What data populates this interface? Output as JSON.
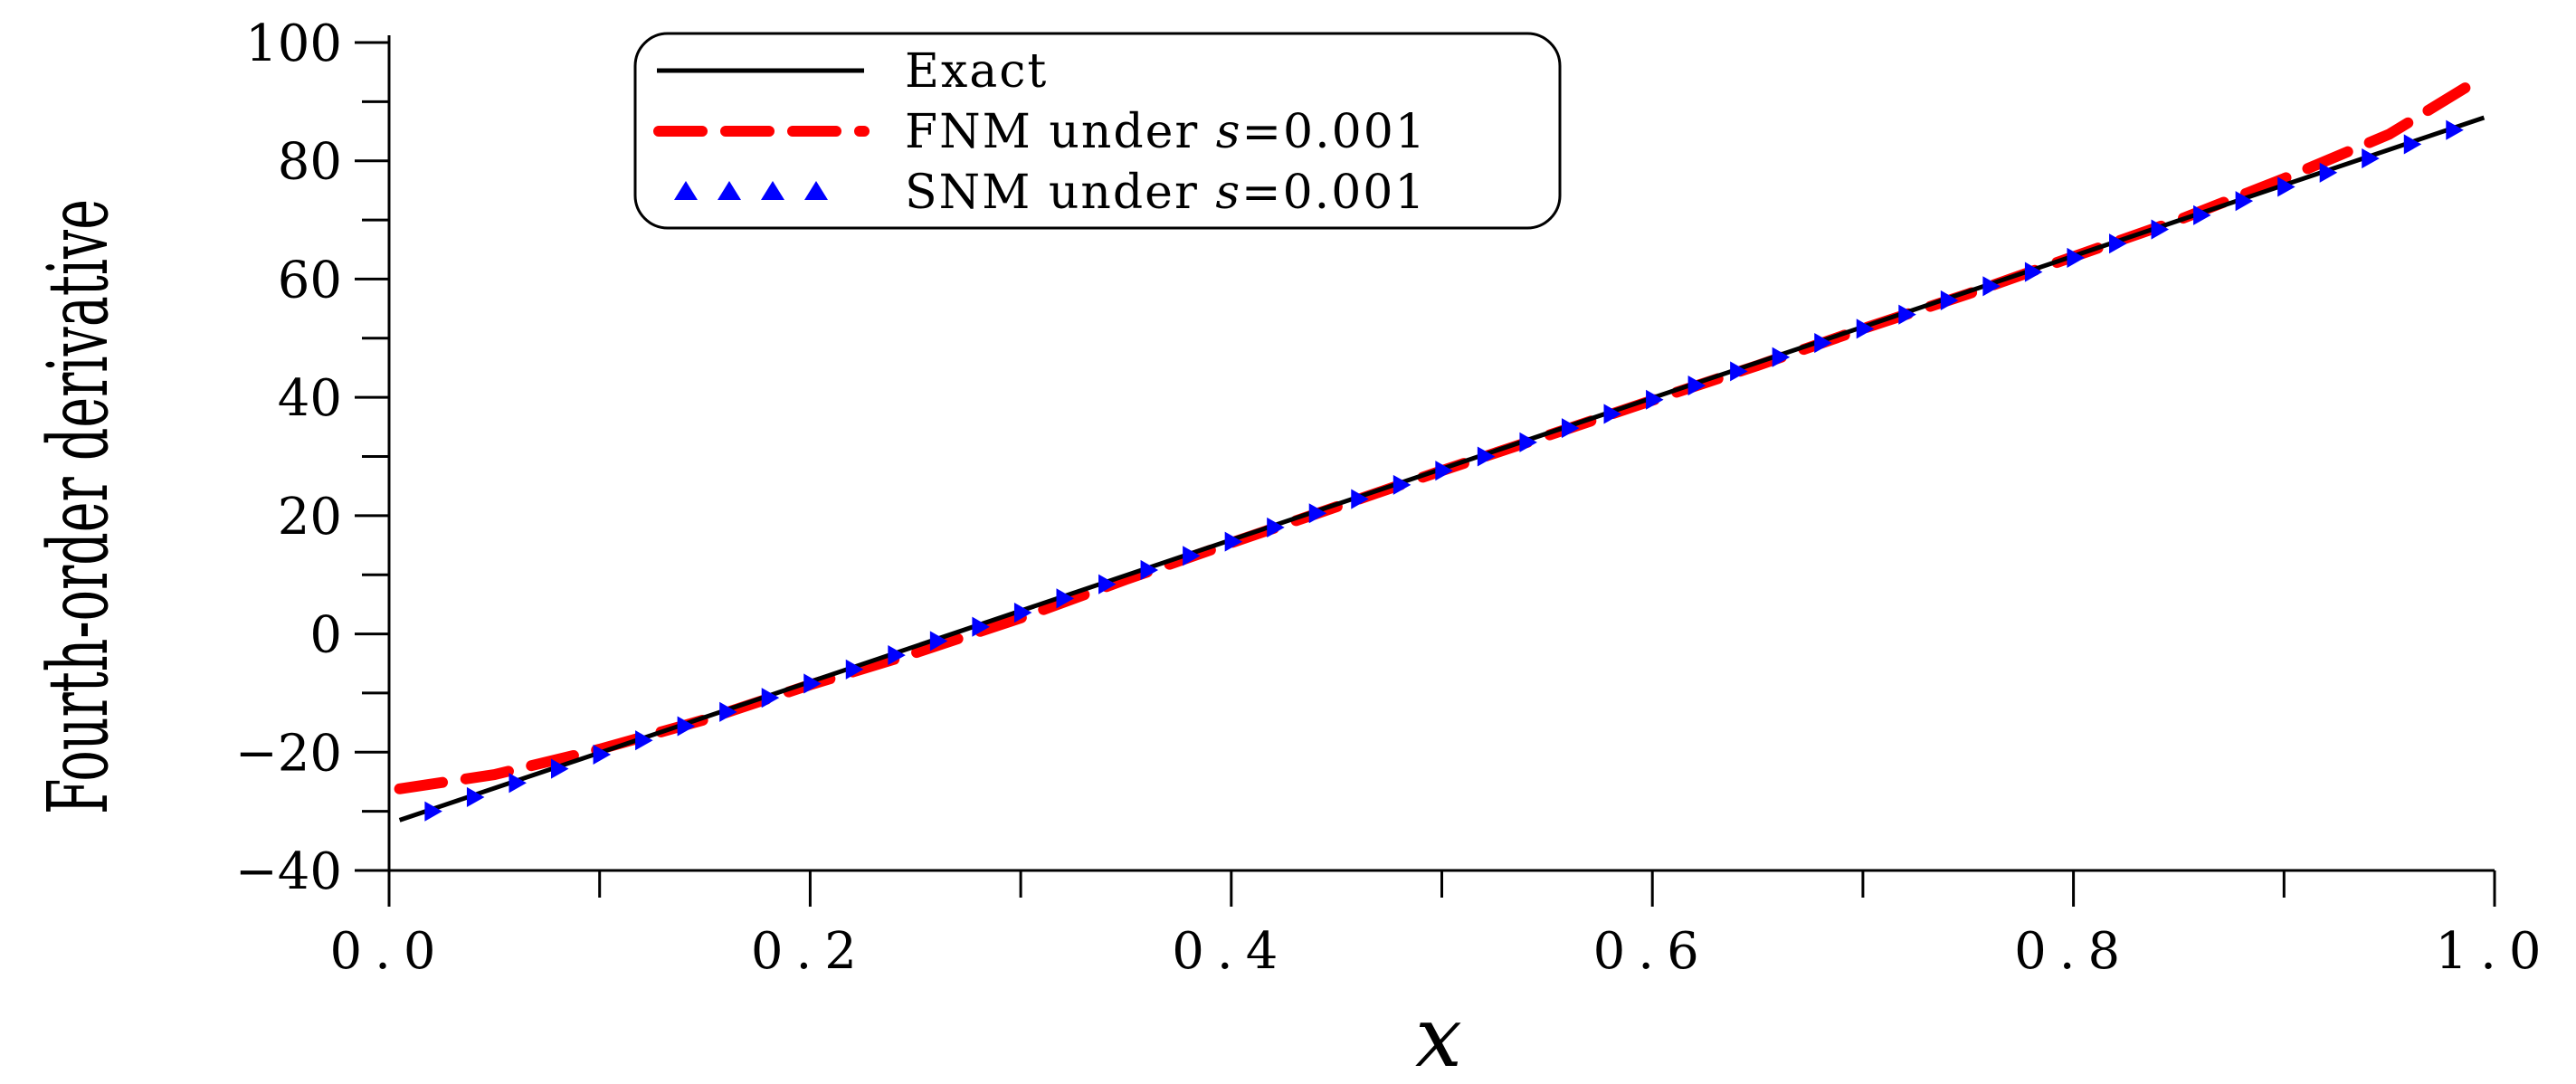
{
  "chart_data": {
    "type": "line",
    "title": "",
    "xlabel": "x",
    "ylabel": "Fourth-order derivative",
    "xlim": [
      0.0,
      1.0
    ],
    "ylim": [
      -40,
      100
    ],
    "x_ticks": [
      "0.0",
      "0.2",
      "0.4",
      "0.6",
      "0.8",
      "1.0"
    ],
    "y_ticks": [
      "−40",
      "−20",
      "0",
      "20",
      "40",
      "60",
      "80",
      "100"
    ],
    "grid": false,
    "legend_position": "top-center",
    "series": [
      {
        "name": "Exact",
        "style": "solid",
        "color": "#000000",
        "x": [
          0.005,
          0.995
        ],
        "y": [
          -31.5,
          87.3
        ]
      },
      {
        "name": "FNM under s=0.001",
        "style": "dashed",
        "color": "#ff0000",
        "x": [
          0.005,
          0.05,
          0.1,
          0.15,
          0.2,
          0.25,
          0.3,
          0.35,
          0.4,
          0.45,
          0.5,
          0.55,
          0.6,
          0.65,
          0.7,
          0.75,
          0.8,
          0.85,
          0.9,
          0.95,
          0.995
        ],
        "y": [
          -26.2,
          -23.8,
          -19.5,
          -14.5,
          -8.6,
          -3.2,
          2.7,
          9.2,
          15.4,
          21.5,
          27.6,
          33.5,
          39.5,
          45.4,
          51.6,
          57.5,
          63.8,
          70.0,
          77.0,
          84.5,
          94.3
        ]
      },
      {
        "name": "SNM under s=0.001",
        "style": "triangle-markers",
        "color": "#0000ff",
        "x": [
          0.02,
          0.04,
          0.06,
          0.08,
          0.1,
          0.12,
          0.14,
          0.16,
          0.18,
          0.2,
          0.22,
          0.24,
          0.26,
          0.28,
          0.3,
          0.32,
          0.34,
          0.36,
          0.38,
          0.4,
          0.42,
          0.44,
          0.46,
          0.48,
          0.5,
          0.52,
          0.54,
          0.56,
          0.58,
          0.6,
          0.62,
          0.64,
          0.66,
          0.68,
          0.7,
          0.72,
          0.74,
          0.76,
          0.78,
          0.8,
          0.82,
          0.84,
          0.86,
          0.88,
          0.9,
          0.92,
          0.94,
          0.96,
          0.98
        ],
        "y": [
          -30.0,
          -27.6,
          -25.2,
          -22.8,
          -20.4,
          -18.0,
          -15.6,
          -13.2,
          -10.8,
          -8.4,
          -6.0,
          -3.6,
          -1.2,
          1.2,
          3.6,
          6.0,
          8.4,
          10.8,
          13.2,
          15.6,
          18.0,
          20.4,
          22.8,
          25.2,
          27.6,
          30.0,
          32.4,
          34.8,
          37.2,
          39.6,
          42.0,
          44.4,
          46.8,
          49.2,
          51.6,
          54.0,
          56.4,
          58.8,
          61.2,
          63.6,
          66.0,
          68.4,
          70.8,
          73.2,
          75.6,
          78.0,
          80.4,
          82.8,
          85.2
        ]
      }
    ],
    "legend": [
      {
        "label_main": "Exact",
        "label_italic": "",
        "label_tail": ""
      },
      {
        "label_main": "FNM under ",
        "label_italic": "s",
        "label_tail": "=0.001"
      },
      {
        "label_main": "SNM under ",
        "label_italic": "s",
        "label_tail": "=0.001"
      }
    ]
  }
}
